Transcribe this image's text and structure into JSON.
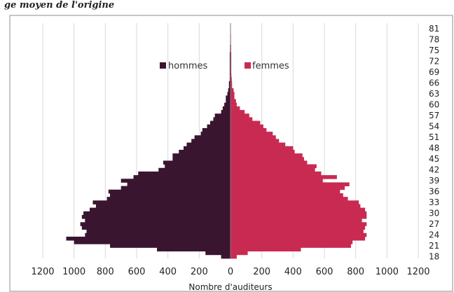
{
  "header": {
    "partial_caption": "ge moyen de l'origine"
  },
  "chart_data": {
    "type": "bar",
    "orientation": "horizontal-population-pyramid",
    "title": "",
    "xlabel": "Nombre d'auditeurs",
    "ylabel": "",
    "xlim": [
      -1200,
      1200
    ],
    "x_tick_values": [
      -1200,
      -1000,
      -800,
      -600,
      -400,
      -200,
      0,
      200,
      400,
      600,
      800,
      1000,
      1200
    ],
    "x_tick_labels": [
      "1200",
      "1000",
      "800",
      "600",
      "400",
      "200",
      "0",
      "200",
      "400",
      "600",
      "800",
      "1000",
      "1200"
    ],
    "age_range": [
      18,
      82
    ],
    "age_tick_labels": [
      "18",
      "21",
      "24",
      "27",
      "30",
      "33",
      "36",
      "39",
      "42",
      "45",
      "48",
      "51",
      "54",
      "57",
      "60",
      "63",
      "66",
      "69",
      "72",
      "75",
      "78",
      "81"
    ],
    "grid": true,
    "legend_position": "top-center",
    "series": [
      {
        "name": "hommes",
        "color": "#3a1530",
        "ages": [
          18,
          19,
          20,
          21,
          22,
          23,
          24,
          25,
          26,
          27,
          28,
          29,
          30,
          31,
          32,
          33,
          34,
          35,
          36,
          37,
          38,
          39,
          40,
          41,
          42,
          43,
          44,
          45,
          46,
          47,
          48,
          49,
          50,
          51,
          52,
          53,
          54,
          55,
          56,
          57,
          58,
          59,
          60,
          61,
          62,
          63,
          64,
          65,
          66,
          67,
          68,
          69,
          70,
          71,
          72,
          73,
          74,
          75,
          76,
          77,
          78,
          79,
          80,
          81,
          82
        ],
        "values": [
          60,
          160,
          470,
          770,
          1000,
          1050,
          930,
          920,
          950,
          960,
          930,
          950,
          940,
          900,
          860,
          880,
          790,
          770,
          780,
          700,
          660,
          700,
          620,
          590,
          460,
          420,
          430,
          370,
          370,
          330,
          300,
          280,
          250,
          230,
          190,
          180,
          150,
          130,
          110,
          100,
          60,
          50,
          40,
          30,
          30,
          20,
          15,
          10,
          10,
          5,
          5,
          5,
          5,
          5,
          5,
          5,
          5,
          3,
          3,
          2,
          2,
          2,
          2,
          2,
          1
        ]
      },
      {
        "name": "femmes",
        "color": "#c92a52",
        "ages": [
          18,
          19,
          20,
          21,
          22,
          23,
          24,
          25,
          26,
          27,
          28,
          29,
          30,
          31,
          32,
          33,
          34,
          35,
          36,
          37,
          38,
          39,
          40,
          41,
          42,
          43,
          44,
          45,
          46,
          47,
          48,
          49,
          50,
          51,
          52,
          53,
          54,
          55,
          56,
          57,
          58,
          59,
          60,
          61,
          62,
          63,
          64,
          65,
          66,
          67,
          68,
          69,
          70,
          71,
          72,
          73,
          74,
          75,
          76,
          77,
          78,
          79,
          80,
          81,
          82
        ],
        "values": [
          40,
          110,
          450,
          770,
          780,
          860,
          870,
          850,
          860,
          870,
          840,
          870,
          870,
          860,
          830,
          820,
          750,
          720,
          700,
          730,
          760,
          590,
          680,
          580,
          540,
          550,
          490,
          470,
          460,
          410,
          400,
          350,
          310,
          290,
          270,
          230,
          210,
          190,
          140,
          120,
          90,
          60,
          40,
          35,
          25,
          25,
          20,
          10,
          10,
          8,
          6,
          5,
          5,
          5,
          5,
          5,
          5,
          4,
          4,
          3,
          3,
          3,
          2,
          2,
          1
        ]
      }
    ]
  }
}
